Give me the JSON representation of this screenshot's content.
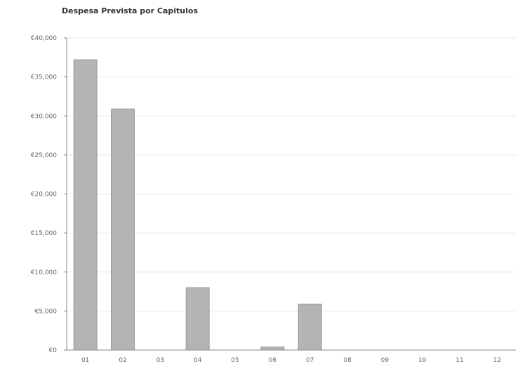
{
  "chart_data": {
    "type": "bar",
    "title": "Despesa Prevista por Capitulos",
    "xlabel": "",
    "ylabel": "",
    "categories": [
      "01",
      "02",
      "03",
      "04",
      "05",
      "06",
      "07",
      "08",
      "09",
      "10",
      "11",
      "12"
    ],
    "values": [
      37200,
      30900,
      0,
      8000,
      0,
      400,
      5900,
      0,
      0,
      0,
      0,
      0
    ],
    "ylim": [
      0,
      40000
    ],
    "yticks": [
      0,
      5000,
      10000,
      15000,
      20000,
      25000,
      30000,
      35000,
      40000
    ],
    "ytick_labels": [
      "€0",
      "€5,000",
      "€10,000",
      "€15,000",
      "€20,000",
      "€25,000",
      "€30,000",
      "€35,000",
      "€40,000"
    ],
    "grid": true,
    "colors": {
      "bar": "#b4b4b4",
      "bar_edge": "#9a9a9a",
      "grid": "#e8e8e8",
      "axis": "#888888"
    }
  }
}
